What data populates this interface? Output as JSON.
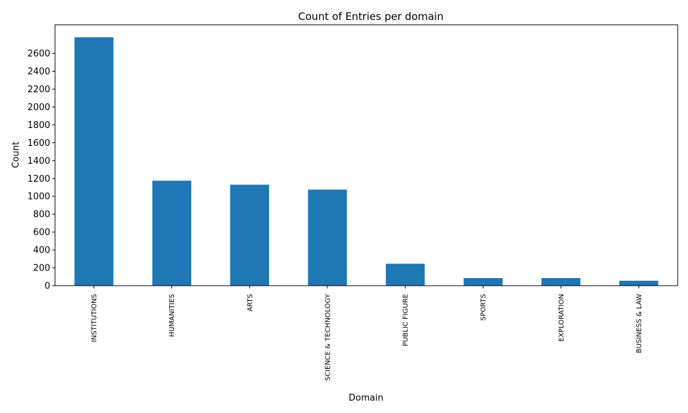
{
  "chart_data": {
    "type": "bar",
    "title": "Count of Entries per domain",
    "xlabel": "Domain",
    "ylabel": "Count",
    "categories": [
      "INSTITUTIONS",
      "HUMANITIES",
      "ARTS",
      "SCIENCE & TECHNOLOGY",
      "PUBLIC FIGURE",
      "SPORTS",
      "EXPLORATION",
      "BUSINESS & LAW"
    ],
    "values": [
      2780,
      1175,
      1130,
      1075,
      245,
      85,
      85,
      55
    ],
    "yticks": [
      0,
      200,
      400,
      600,
      800,
      1000,
      1200,
      1400,
      1600,
      1800,
      2000,
      2200,
      2400,
      2600
    ],
    "ylim": [
      0,
      2920
    ],
    "bar_color": "#1f77b4",
    "grid": false,
    "legend": "none"
  }
}
